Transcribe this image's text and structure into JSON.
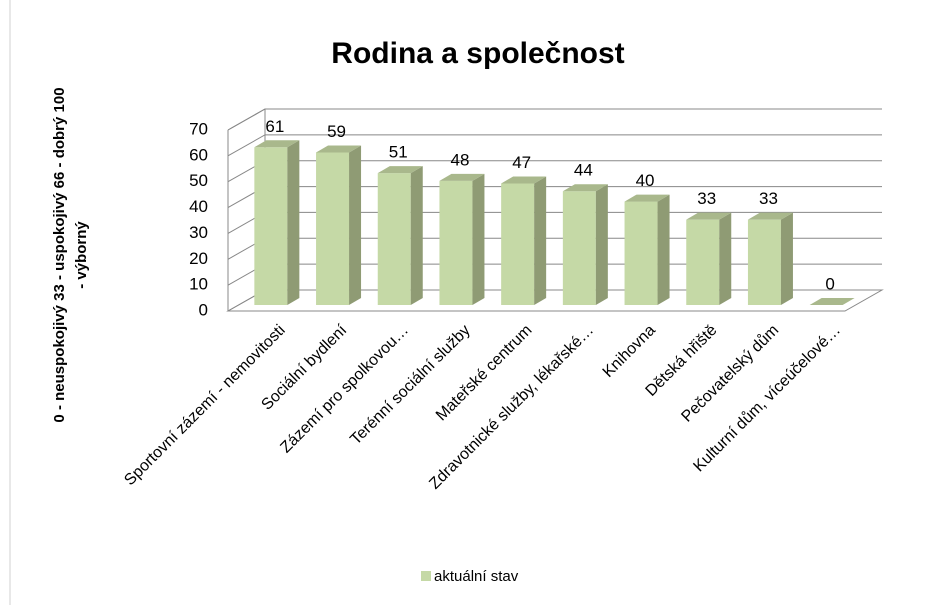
{
  "chart_data": {
    "type": "bar3d",
    "title": "Rodina a společnost",
    "ylabel": [
      "0 - neuspokojivý   33  - uspokojivý   66 - dobrý   100",
      "- výborný"
    ],
    "categories": [
      "Sportovní zázemí - nemovitosti",
      "Sociální bydlení",
      "Zázemí pro spolkovou…",
      "Terénní sociální služby",
      "Mateřské centrum",
      "Zdravotnické služby, lékařské…",
      "Knihovna",
      "Dětská hřiště",
      "Pečovatelský dům",
      "Kulturní dům, víceúčelové…"
    ],
    "series": [
      {
        "name": "aktuální stav",
        "color": "#c5d9a6",
        "values": [
          61,
          59,
          51,
          48,
          47,
          44,
          40,
          33,
          33,
          0
        ]
      }
    ],
    "ylim": [
      0,
      70
    ],
    "yticks": [
      0,
      10,
      20,
      30,
      40,
      50,
      60,
      70
    ],
    "grid": true,
    "legend": "bottom"
  }
}
